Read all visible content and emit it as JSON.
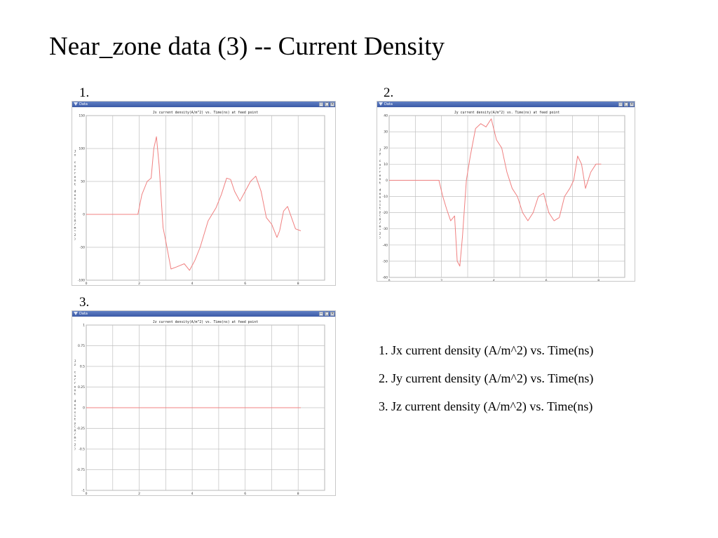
{
  "title": "Near_zone data (3) -- Current Density",
  "window_title": "Data",
  "window_buttons": [
    "−",
    "□",
    "×"
  ],
  "captions": [
    "1. Jx current density (A/m^2) vs. Time(ns)",
    "2. Jy current density (A/m^2) vs. Time(ns)",
    "3. Jz current density (A/m^2) vs. Time(ns)"
  ],
  "colors": {
    "line": "#f08080",
    "grid": "#c0c0c0",
    "titlebar": "#3c5aa6"
  },
  "chart_data": [
    {
      "type": "line",
      "label": "1.",
      "title": "Jx current density(A/m^2) vs. Time(ns) at feed point",
      "xlabel": "Time(ns)",
      "ylabel": "Jx current density(A/m^2)",
      "xlim": [
        0,
        9
      ],
      "ylim": [
        -100,
        150
      ],
      "xticks": [
        0,
        2,
        4,
        6,
        8
      ],
      "yticks": [
        -100,
        -50,
        0,
        50,
        100,
        150
      ],
      "xgrid": [
        0,
        1,
        2,
        3,
        4,
        5,
        6,
        7,
        8,
        9
      ],
      "ygrid": [
        -100,
        -50,
        0,
        50,
        100,
        150
      ],
      "grid": true,
      "x": [
        0,
        0.5,
        1,
        1.5,
        1.95,
        2.1,
        2.3,
        2.45,
        2.55,
        2.65,
        2.75,
        2.9,
        3.0,
        3.2,
        3.4,
        3.7,
        3.9,
        4.1,
        4.3,
        4.6,
        4.9,
        5.1,
        5.3,
        5.45,
        5.6,
        5.8,
        6.0,
        6.2,
        6.4,
        6.6,
        6.8,
        7.0,
        7.2,
        7.3,
        7.45,
        7.6,
        7.75,
        7.9,
        8.1
      ],
      "y": [
        0,
        0,
        0,
        0,
        0,
        30,
        50,
        55,
        100,
        118,
        75,
        -20,
        -40,
        -83,
        -80,
        -75,
        -85,
        -70,
        -50,
        -10,
        10,
        30,
        55,
        53,
        35,
        20,
        35,
        50,
        58,
        35,
        -5,
        -15,
        -35,
        -25,
        5,
        12,
        -5,
        -22,
        -25
      ]
    },
    {
      "type": "line",
      "label": "2.",
      "title": "Jy current density(A/m^2) vs. Time(ns) at feed point",
      "xlabel": "Time (ns)",
      "ylabel": "Jy current density(A/m^2)",
      "xlim": [
        0,
        9
      ],
      "ylim": [
        -60,
        40
      ],
      "xticks": [
        0,
        2,
        4,
        6,
        8
      ],
      "yticks": [
        -60,
        -50,
        -40,
        -30,
        -20,
        -10,
        0,
        10,
        20,
        30,
        40
      ],
      "xgrid": [
        0,
        1,
        2,
        3,
        4,
        5,
        6,
        7,
        8,
        9
      ],
      "ygrid": [
        -60,
        -50,
        -40,
        -30,
        -20,
        -10,
        0,
        10,
        20,
        30,
        40
      ],
      "grid": true,
      "x": [
        0,
        0.5,
        1,
        1.5,
        1.9,
        2.05,
        2.2,
        2.35,
        2.5,
        2.6,
        2.7,
        2.8,
        2.95,
        3.1,
        3.3,
        3.5,
        3.7,
        3.9,
        4.1,
        4.3,
        4.5,
        4.7,
        4.9,
        5.1,
        5.3,
        5.5,
        5.7,
        5.9,
        6.1,
        6.3,
        6.5,
        6.7,
        6.9,
        7.05,
        7.2,
        7.35,
        7.5,
        7.7,
        7.9,
        8.1
      ],
      "y": [
        0,
        0,
        0,
        0,
        0,
        -10,
        -18,
        -25,
        -22,
        -50,
        -53,
        -35,
        0,
        15,
        32,
        35,
        33,
        38,
        25,
        20,
        5,
        -5,
        -10,
        -20,
        -25,
        -20,
        -10,
        -8,
        -20,
        -25,
        -23,
        -10,
        -5,
        0,
        15,
        10,
        -5,
        5,
        10,
        10
      ]
    },
    {
      "type": "line",
      "label": "3.",
      "title": "Jz current density(A/m^2) vs. Time(ns) at feed point",
      "xlabel": "Time(ns)",
      "ylabel": "Jz current density(A/m^2)",
      "xlim": [
        0,
        9
      ],
      "ylim": [
        -1,
        1
      ],
      "xticks": [
        0,
        2,
        4,
        6,
        8
      ],
      "yticks": [
        -1,
        -0.75,
        -0.5,
        -0.25,
        0,
        0.25,
        0.5,
        0.75,
        1
      ],
      "xgrid": [
        0,
        1,
        2,
        3,
        4,
        5,
        6,
        7,
        8,
        9
      ],
      "ygrid": [
        -1,
        -0.75,
        -0.5,
        -0.25,
        0,
        0.25,
        0.5,
        0.75,
        1
      ],
      "grid": true,
      "x": [
        0,
        8.1
      ],
      "y": [
        0,
        0
      ]
    }
  ]
}
